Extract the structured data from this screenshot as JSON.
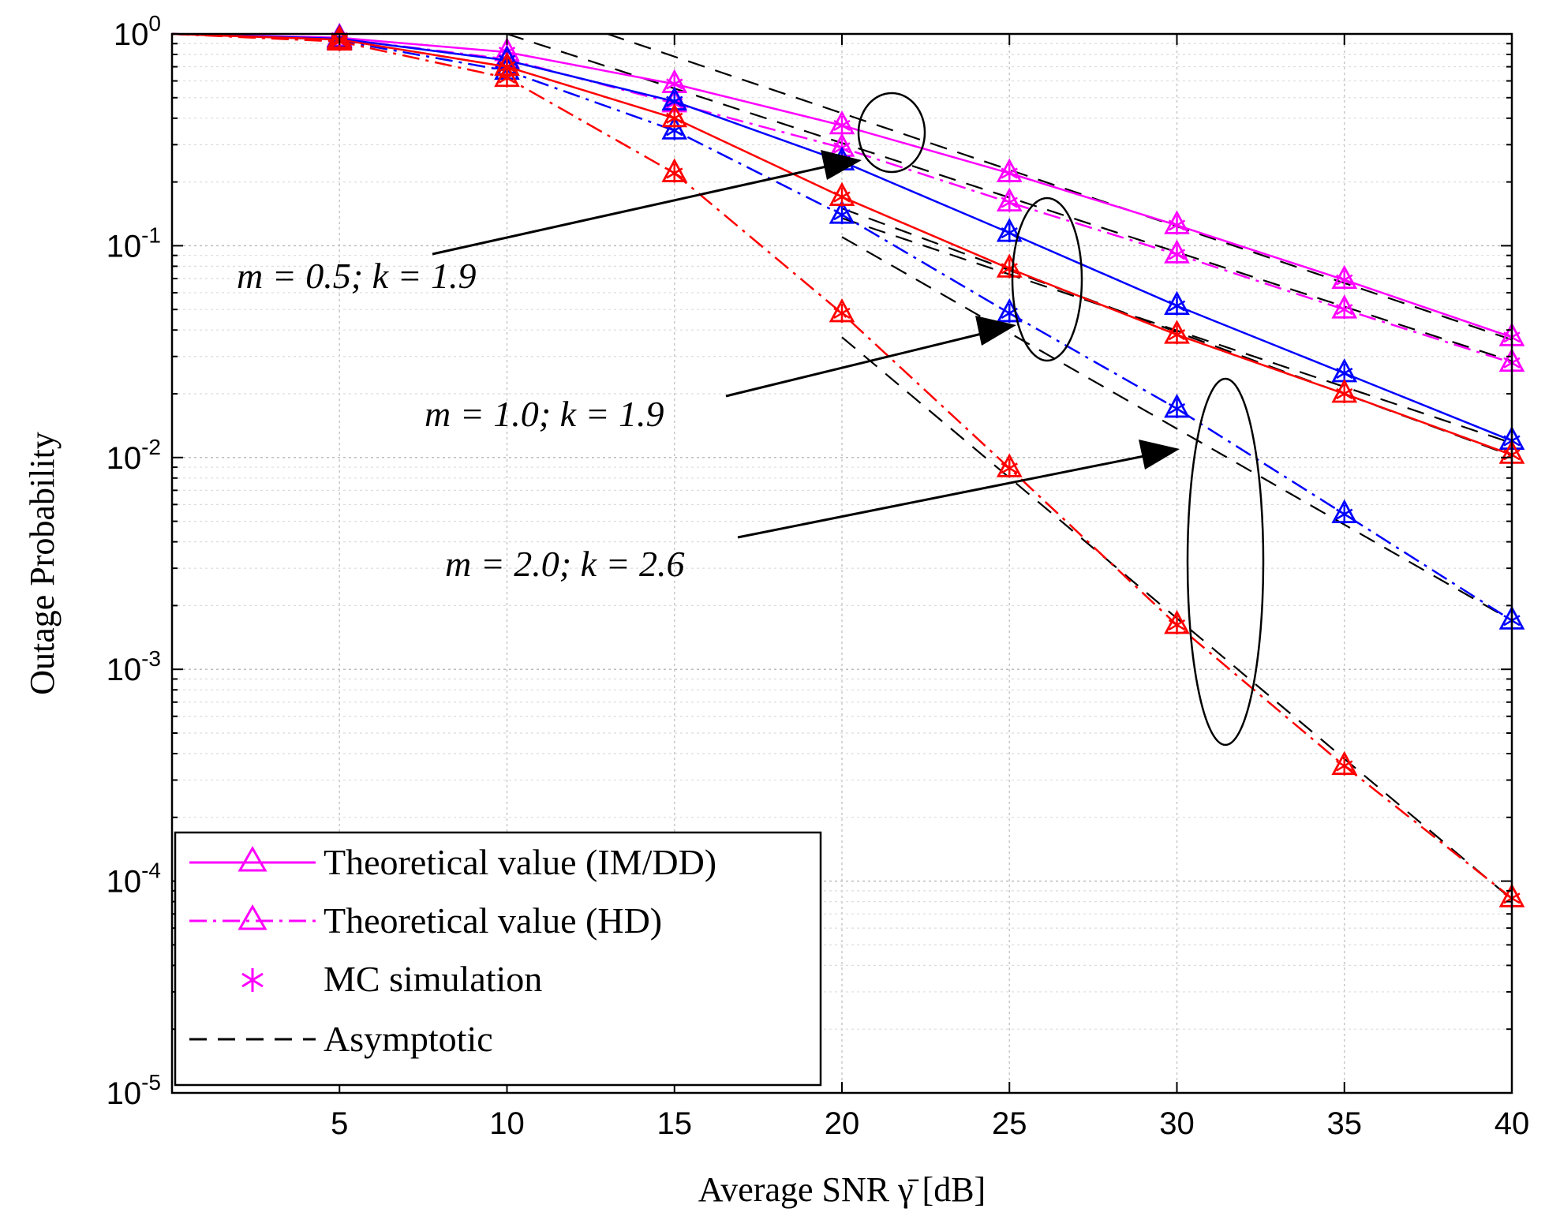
{
  "chart_data": {
    "type": "line",
    "title": "",
    "xlabel": "Average SNR γ̄ [dB]",
    "ylabel": "Outage Probability",
    "xlim": [
      0,
      40
    ],
    "ylim": [
      1e-05,
      1
    ],
    "yscale": "log",
    "grid": true,
    "x_ticks": [
      5,
      10,
      15,
      20,
      25,
      30,
      35,
      40
    ],
    "x_tick_labels": [
      "5",
      "10",
      "15",
      "20",
      "25",
      "30",
      "35",
      "40"
    ],
    "y_ticks": [
      {
        "value": 1,
        "base": "10",
        "exp": "0"
      },
      {
        "value": 0.1,
        "base": "10",
        "exp": "-1"
      },
      {
        "value": 0.01,
        "base": "10",
        "exp": "-2"
      },
      {
        "value": 0.001,
        "base": "10",
        "exp": "-3"
      },
      {
        "value": 0.0001,
        "base": "10",
        "exp": "-4"
      },
      {
        "value": 1e-05,
        "base": "10",
        "exp": "-5"
      }
    ],
    "x": [
      0,
      5,
      10,
      15,
      20,
      25,
      30,
      35,
      40
    ],
    "series": [
      {
        "name": "IM/DD m=0.5 k=1.9",
        "style": "solid",
        "color": "#ff00ff",
        "values": [
          1.0,
          0.96,
          0.82,
          0.58,
          0.37,
          0.22,
          0.125,
          0.069,
          0.037
        ]
      },
      {
        "name": "HD m=0.5 k=1.9",
        "style": "dashdot",
        "color": "#ff00ff",
        "values": [
          1.0,
          0.95,
          0.76,
          0.47,
          0.29,
          0.16,
          0.091,
          0.05,
          0.028
        ]
      },
      {
        "name": "IM/DD m=1.0 k=1.9",
        "style": "solid",
        "color": "#0000ff",
        "values": [
          1.0,
          0.95,
          0.75,
          0.48,
          0.25,
          0.115,
          0.052,
          0.025,
          0.012
        ]
      },
      {
        "name": "HD m=1.0 k=1.9",
        "style": "dashdot",
        "color": "#0000ff",
        "values": [
          1.0,
          0.93,
          0.67,
          0.35,
          0.14,
          0.048,
          0.017,
          0.0054,
          0.0017
        ]
      },
      {
        "name": "IM/DD m=2.0 k=2.6",
        "style": "solid",
        "color": "#ff0000",
        "values": [
          1.0,
          0.94,
          0.7,
          0.4,
          0.17,
          0.078,
          0.038,
          0.02,
          0.0103
        ]
      },
      {
        "name": "HD m=2.0 k=2.6",
        "style": "dashdot",
        "color": "#ff0000",
        "values": [
          1.0,
          0.92,
          0.62,
          0.22,
          0.048,
          0.0089,
          0.00162,
          0.00035,
          8.3e-05
        ]
      }
    ],
    "asymptotic": [
      {
        "name": "Asymptotic IM/DD m=0.5",
        "points": [
          [
            13,
            1.0
          ],
          [
            40,
            0.036
          ]
        ]
      },
      {
        "name": "Asymptotic HD m=0.5",
        "points": [
          [
            10,
            1.0
          ],
          [
            40,
            0.0285
          ]
        ]
      },
      {
        "name": "Asymptotic IM/DD m=1.0",
        "points": [
          [
            20,
            0.135
          ],
          [
            40,
            0.0117
          ]
        ]
      },
      {
        "name": "Asymptotic HD m=1.0",
        "points": [
          [
            20,
            0.11
          ],
          [
            40,
            0.0017
          ]
        ]
      },
      {
        "name": "Asymptotic IM/DD m=2.0",
        "points": [
          [
            20,
            0.15
          ],
          [
            40,
            0.0102
          ]
        ]
      },
      {
        "name": "Asymptotic HD m=2.0",
        "points": [
          [
            20,
            0.037
          ],
          [
            40,
            8.2e-05
          ]
        ]
      }
    ],
    "legend": {
      "position": "bottom-left",
      "entries": [
        {
          "label": "Theoretical value (IM/DD)",
          "style": "solid-triangle"
        },
        {
          "label": "Theoretical value (HD)",
          "style": "dashdot-triangle"
        },
        {
          "label": "MC simulation",
          "style": "star"
        },
        {
          "label": "Asymptotic",
          "style": "dashed"
        }
      ]
    },
    "annotations": [
      {
        "text": "m = 0.5; k = 1.9"
      },
      {
        "text": "m = 1.0; k = 1.9"
      },
      {
        "text": "m = 2.0; k = 2.6"
      }
    ],
    "colors": {
      "magenta": "#ff00ff",
      "blue": "#0000ff",
      "red": "#ff0000",
      "black": "#000000"
    }
  }
}
